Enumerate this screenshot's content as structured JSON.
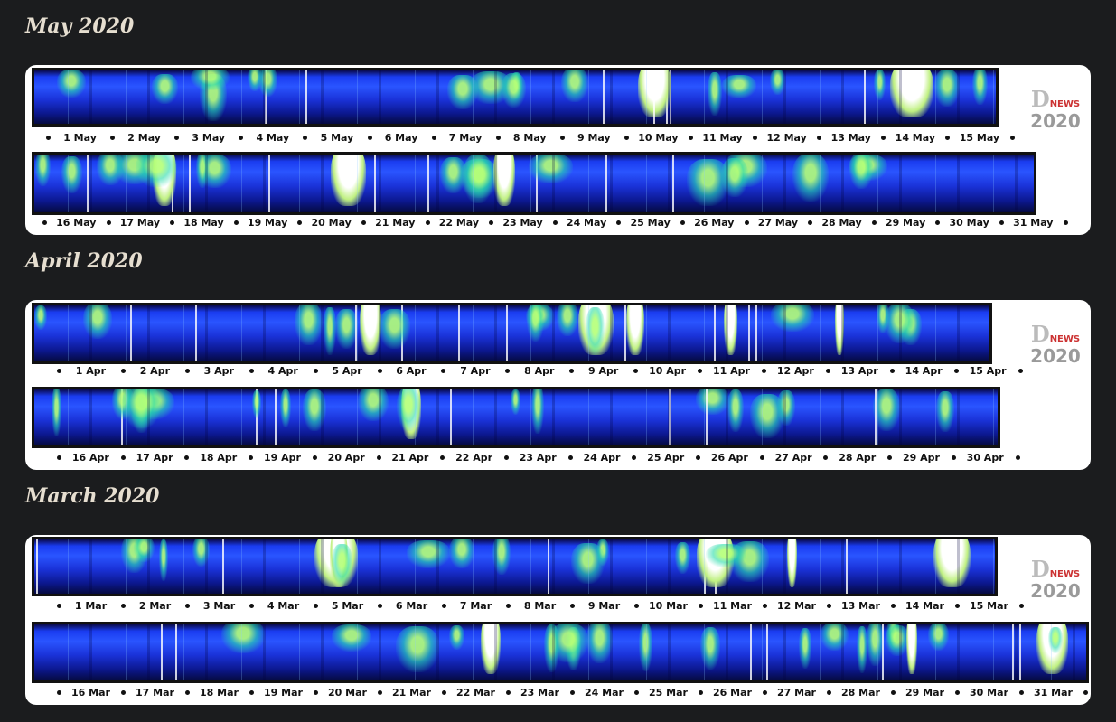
{
  "sections": [
    {
      "title": "May 2020",
      "logo": {
        "letter": "D",
        "word": "NEWS",
        "year": "2020"
      },
      "rows": [
        {
          "labels": [
            "1 May",
            "2 May",
            "3 May",
            "4 May",
            "5 May",
            "6 May",
            "7 May",
            "8 May",
            "9 May",
            "10 May",
            "11 May",
            "12 May",
            "13 May",
            "14 May",
            "15 May"
          ]
        },
        {
          "labels": [
            "16 May",
            "17 May",
            "18 May",
            "19 May",
            "20 May",
            "21 May",
            "22 May",
            "23 May",
            "24 May",
            "25 May",
            "26 May",
            "27 May",
            "28 May",
            "29 May",
            "30 May",
            "31 May"
          ]
        }
      ]
    },
    {
      "title": "April 2020",
      "logo": {
        "letter": "D",
        "word": "NEWS",
        "year": "2020"
      },
      "rows": [
        {
          "labels": [
            "1 Apr",
            "2 Apr",
            "3 Apr",
            "4 Apr",
            "5 Apr",
            "6 Apr",
            "7 Apr",
            "8 Apr",
            "9 Apr",
            "10 Apr",
            "11 Apr",
            "12 Apr",
            "13 Apr",
            "14 Apr",
            "15 Apr"
          ]
        },
        {
          "labels": [
            "16 Apr",
            "17 Apr",
            "18 Apr",
            "19 Apr",
            "20 Apr",
            "21 Apr",
            "22 Apr",
            "23 Apr",
            "24 Apr",
            "25 Apr",
            "26 Apr",
            "27 Apr",
            "28 Apr",
            "29 Apr",
            "30 Apr"
          ]
        }
      ]
    },
    {
      "title": "March 2020",
      "logo": {
        "letter": "D",
        "word": "NEWS",
        "year": "2020"
      },
      "rows": [
        {
          "labels": [
            "1 Mar",
            "2 Mar",
            "3 Mar",
            "4 Mar",
            "5 Mar",
            "6 Mar",
            "7 Mar",
            "8 Mar",
            "9 Mar",
            "10 Mar",
            "11 Mar",
            "12 Mar",
            "13 Mar",
            "14 Mar",
            "15 Mar"
          ]
        },
        {
          "labels": [
            "16 Mar",
            "17 Mar",
            "18 Mar",
            "19 Mar",
            "20 Mar",
            "21 Mar",
            "22 Mar",
            "23 Mar",
            "24 Mar",
            "25 Mar",
            "26 Mar",
            "27 Mar",
            "28 Mar",
            "29 Mar",
            "30 Mar",
            "31 Mar"
          ]
        }
      ]
    }
  ]
}
